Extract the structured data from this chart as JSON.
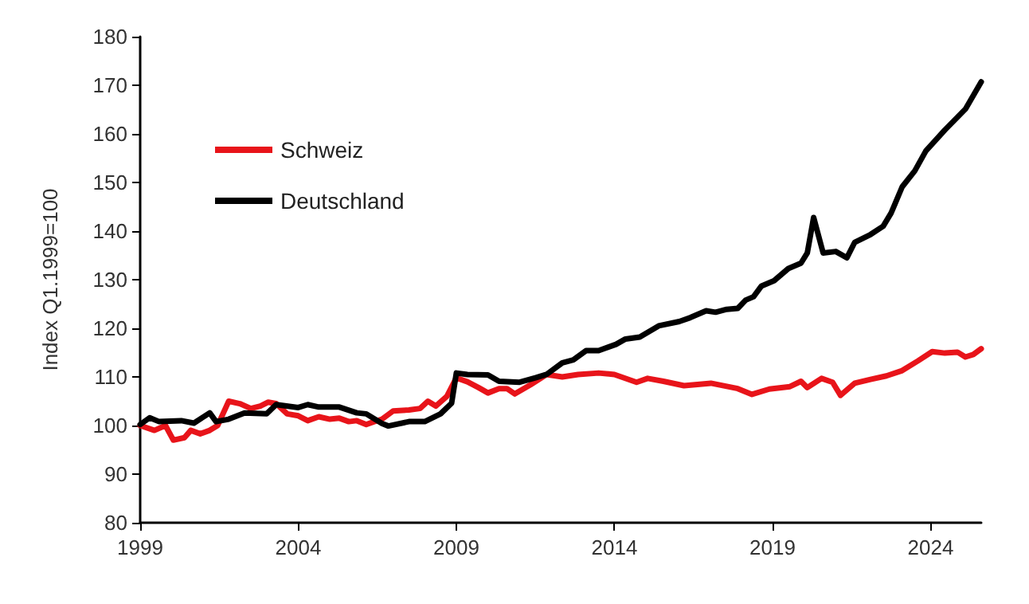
{
  "chart_data": {
    "type": "line",
    "ylabel": "Index Q1.1999=100",
    "xlim": [
      1999,
      2025.6
    ],
    "xticks": [
      1999,
      2004,
      2009,
      2014,
      2019,
      2024
    ],
    "ylim": [
      80,
      180
    ],
    "yticks": [
      80,
      90,
      100,
      110,
      120,
      130,
      140,
      150,
      160,
      170,
      180
    ],
    "grid": false,
    "legend": "top left",
    "marker": "none",
    "line_style": "solid",
    "series": [
      {
        "name": "Schweiz",
        "color": "#e8141a",
        "x": [
          1999.0,
          1999.45,
          1999.8,
          2000.05,
          2000.4,
          2000.6,
          2000.9,
          2001.2,
          2001.45,
          2001.8,
          2002.15,
          2002.5,
          2002.8,
          2003.05,
          2003.3,
          2003.65,
          2004.0,
          2004.3,
          2004.65,
          2005.0,
          2005.3,
          2005.6,
          2005.85,
          2006.15,
          2006.4,
          2006.65,
          2007.0,
          2007.5,
          2007.85,
          2008.1,
          2008.35,
          2008.7,
          2009.0,
          2009.35,
          2009.7,
          2010.0,
          2010.35,
          2010.6,
          2010.85,
          2011.35,
          2011.85,
          2012.35,
          2012.85,
          2013.5,
          2014.0,
          2014.7,
          2015.05,
          2015.55,
          2016.2,
          2017.05,
          2017.9,
          2018.35,
          2018.9,
          2019.55,
          2019.9,
          2020.1,
          2020.55,
          2020.9,
          2021.15,
          2021.6,
          2022.1,
          2022.6,
          2023.1,
          2023.6,
          2024.05,
          2024.45,
          2024.85,
          2025.1,
          2025.35,
          2025.6
        ],
        "values": [
          100,
          99,
          100,
          97,
          97.5,
          99,
          98.3,
          99,
          100,
          105,
          104.5,
          103.5,
          104,
          104.8,
          104.5,
          102.4,
          102,
          101,
          101.8,
          101.3,
          101.5,
          100.8,
          101,
          100.2,
          100.8,
          101.3,
          103,
          103.2,
          103.5,
          105,
          104,
          106,
          109.8,
          109,
          107.8,
          106.7,
          107.6,
          107.6,
          106.5,
          108.4,
          110.5,
          110,
          110.5,
          110.8,
          110.5,
          108.9,
          109.7,
          109.1,
          108.2,
          108.7,
          107.6,
          106.4,
          107.5,
          108,
          109.1,
          107.8,
          109.7,
          108.9,
          106.2,
          108.7,
          109.5,
          110.2,
          111.3,
          113.3,
          115.2,
          114.9,
          115.1,
          114.1,
          114.6,
          115.8
        ]
      },
      {
        "name": "Deutschland",
        "color": "#000000",
        "x": [
          1999.0,
          1999.3,
          1999.6,
          2000.3,
          2000.7,
          2001.2,
          2001.4,
          2001.8,
          2002.3,
          2003.0,
          2003.3,
          2004.0,
          2004.3,
          2004.65,
          2005.3,
          2005.85,
          2006.15,
          2006.65,
          2006.85,
          2007.5,
          2008.0,
          2008.5,
          2008.85,
          2009.0,
          2009.35,
          2010.0,
          2010.35,
          2011.0,
          2011.5,
          2011.85,
          2012.35,
          2012.7,
          2013.1,
          2013.5,
          2014.05,
          2014.35,
          2014.8,
          2015.4,
          2016.05,
          2016.4,
          2016.9,
          2017.2,
          2017.55,
          2017.9,
          2018.15,
          2018.4,
          2018.65,
          2019.05,
          2019.5,
          2019.9,
          2020.1,
          2020.3,
          2020.6,
          2021.0,
          2021.35,
          2021.6,
          2022.1,
          2022.5,
          2022.75,
          2023.1,
          2023.5,
          2023.85,
          2024.45,
          2025.1,
          2025.6
        ],
        "values": [
          100.2,
          101.6,
          100.8,
          101,
          100.5,
          102.6,
          100.8,
          101.3,
          102.6,
          102.4,
          104.3,
          103.7,
          104.3,
          103.8,
          103.8,
          102.6,
          102.4,
          100.4,
          99.9,
          100.8,
          100.8,
          102.4,
          104.6,
          110.8,
          110.5,
          110.4,
          109.1,
          108.9,
          109.8,
          110.5,
          112.9,
          113.5,
          115.4,
          115.4,
          116.7,
          117.8,
          118.2,
          120.5,
          121.4,
          122.2,
          123.6,
          123.3,
          123.9,
          124.1,
          125.8,
          126.5,
          128.7,
          129.8,
          132.3,
          133.4,
          135.5,
          142.8,
          135.5,
          135.8,
          134.5,
          137.7,
          139.3,
          141,
          143.7,
          149.1,
          152.4,
          156.5,
          160.8,
          165.1,
          170.7
        ]
      }
    ]
  }
}
